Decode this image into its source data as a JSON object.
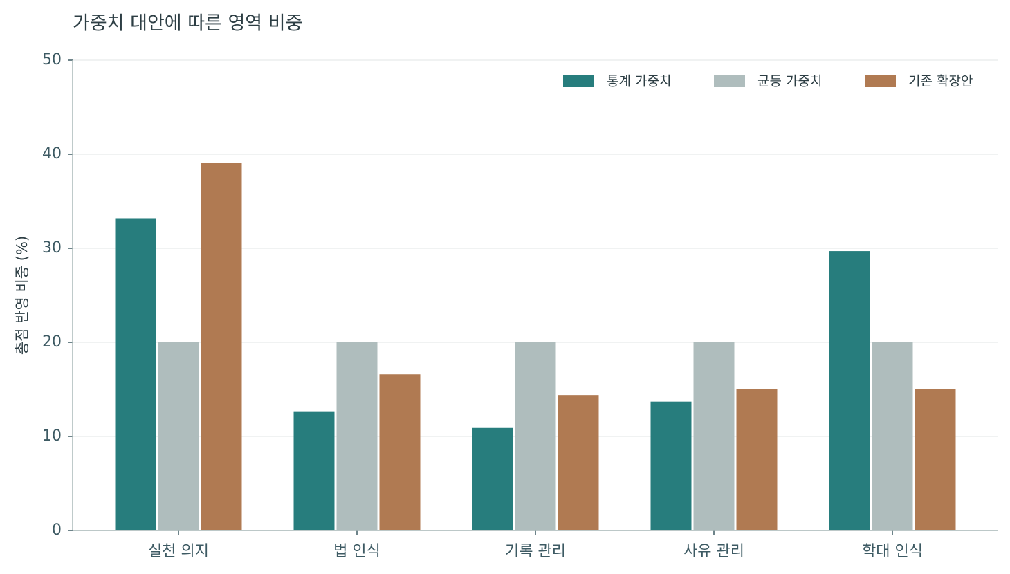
{
  "chart_data": {
    "type": "bar",
    "title": "가중치 대안에 따른 영역 비중",
    "y_label": "총점 반영 비중 (%)",
    "categories": [
      "실천 의지",
      "법 인식",
      "기록 관리",
      "사유 관리",
      "학대 인식"
    ],
    "series": [
      {
        "name": "통계 가중치",
        "color": "#277d7d",
        "values": [
          33.2,
          12.6,
          10.9,
          13.7,
          29.7
        ]
      },
      {
        "name": "균등 가중치",
        "color": "#afbdbd",
        "values": [
          20,
          20,
          20,
          20,
          20
        ]
      },
      {
        "name": "기존 확장안",
        "color": "#b07a52",
        "values": [
          39.1,
          16.6,
          14.4,
          15.0,
          15.0
        ]
      }
    ],
    "ylim": [
      0,
      50
    ],
    "yticks": [
      0,
      10,
      20,
      30,
      40,
      50
    ],
    "grid": true,
    "legend": "top-right"
  }
}
